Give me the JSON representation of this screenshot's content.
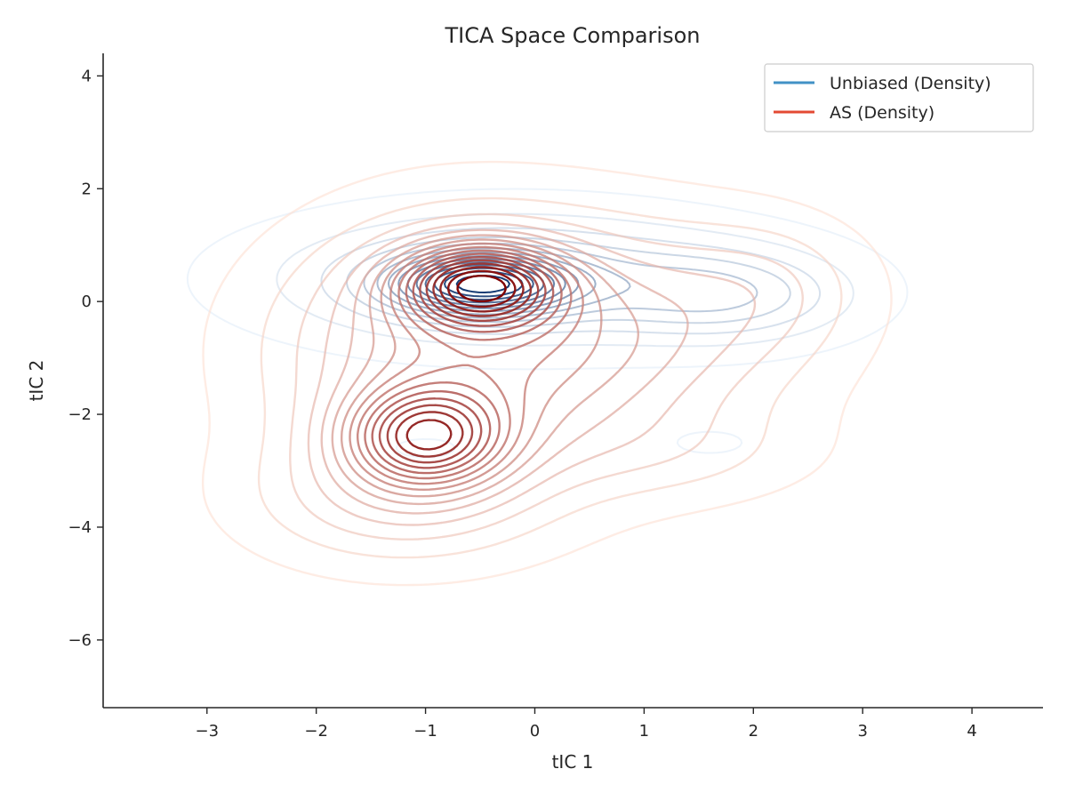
{
  "chart_data": {
    "type": "contour",
    "title": "TICA Space Comparison",
    "xlabel": "tIC 1",
    "ylabel": "tIC 2",
    "xlim": [
      -3.95,
      4.65
    ],
    "ylim": [
      -7.2,
      4.4
    ],
    "xticks": [
      -3,
      -2,
      -1,
      0,
      1,
      2,
      3,
      4
    ],
    "yticks": [
      -6,
      -4,
      -2,
      0,
      2,
      4
    ],
    "xtick_labels": [
      "−3",
      "−2",
      "−1",
      "0",
      "1",
      "2",
      "3",
      "4"
    ],
    "ytick_labels": [
      "−6",
      "−4",
      "−2",
      "0",
      "2",
      "4"
    ],
    "grid": false,
    "legend": {
      "position": "top-right",
      "entries": [
        {
          "label": "Unbiased (Density)",
          "color": "#4292c6"
        },
        {
          "label": "AS (Density)",
          "color": "#e34a33"
        }
      ]
    },
    "series": [
      {
        "name": "Unbiased (Density)",
        "colormap": "Blues",
        "color_low": "#deebf7",
        "color_high": "#08306b",
        "levels": 14,
        "components": [
          {
            "mx": -0.5,
            "my": 0.3,
            "sx": 0.55,
            "sy": 0.35,
            "w": 1.0
          },
          {
            "mx": -0.2,
            "my": 0.4,
            "sx": 1.4,
            "sy": 0.75,
            "w": 0.5
          },
          {
            "mx": 1.8,
            "my": 0.1,
            "sx": 0.75,
            "sy": 0.55,
            "w": 0.35
          },
          {
            "mx": 1.6,
            "my": -2.5,
            "sx": 0.55,
            "sy": 0.35,
            "w": 0.06
          },
          {
            "mx": -1.0,
            "my": -2.6,
            "sx": 0.5,
            "sy": 0.3,
            "w": 0.06
          }
        ]
      },
      {
        "name": "AS (Density)",
        "colormap": "Reds",
        "color_low": "#fee0d2",
        "color_high": "#7f0000",
        "levels": 17,
        "components": [
          {
            "mx": -0.5,
            "my": 0.3,
            "sx": 0.5,
            "sy": 0.5,
            "w": 1.0
          },
          {
            "mx": -1.0,
            "my": -2.4,
            "sx": 0.5,
            "sy": 0.6,
            "w": 0.85
          },
          {
            "mx": -0.6,
            "my": -0.9,
            "sx": 1.1,
            "sy": 1.5,
            "w": 0.6
          },
          {
            "mx": 1.2,
            "my": -0.5,
            "sx": 1.0,
            "sy": 1.3,
            "w": 0.25
          },
          {
            "mx": 2.2,
            "my": 0.3,
            "sx": 0.6,
            "sy": 0.8,
            "w": 0.12
          },
          {
            "mx": -1.3,
            "my": -3.5,
            "sx": 0.9,
            "sy": 0.8,
            "w": 0.25
          },
          {
            "mx": 1.3,
            "my": -2.7,
            "sx": 0.9,
            "sy": 0.6,
            "w": 0.1
          }
        ]
      }
    ]
  }
}
